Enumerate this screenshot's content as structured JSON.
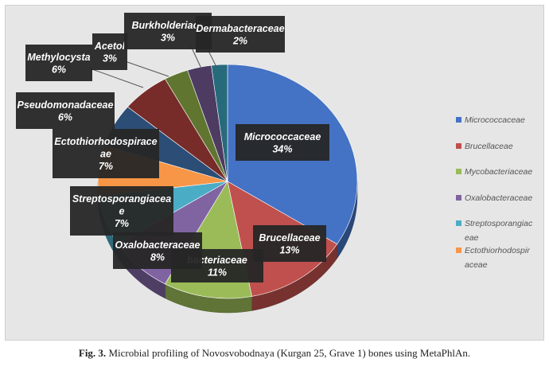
{
  "caption": {
    "label": "Fig. 3.",
    "text": "Microbial profiling of Novosvobodnaya (Kurgan 25, Grave 1) bones using MetaPhlAn."
  },
  "chart_data": {
    "type": "pie",
    "title": "",
    "legend_position": "right",
    "slices": [
      {
        "name": "Micrococcaceae",
        "value": 34,
        "label_lines": [
          "Micrococcaceae"
        ],
        "value_label": "34%",
        "color": "#4472c4"
      },
      {
        "name": "Brucellaceae",
        "value": 13,
        "label_lines": [
          "Brucellaceae"
        ],
        "value_label": "13%",
        "color": "#c0504d"
      },
      {
        "name": "Mycobacteriaceae",
        "value": 11,
        "label_lines": [
          "bacteriaceae"
        ],
        "value_label": "11%",
        "color": "#9bbb59"
      },
      {
        "name": "Oxalobacteraceae",
        "value": 8,
        "label_lines": [
          "Oxalobacteraceae"
        ],
        "value_label": "8%",
        "color": "#8064a2"
      },
      {
        "name": "Streptosporangiaceae",
        "value": 7,
        "label_lines": [
          "Streptosporangiacea",
          "e"
        ],
        "value_label": "7%",
        "color": "#4bacc6"
      },
      {
        "name": "Ectothiorhodospiraceae",
        "value": 7,
        "label_lines": [
          "Ectothiorhodospirace",
          "ae"
        ],
        "value_label": "7%",
        "color": "#f79646"
      },
      {
        "name": "Pseudomonadaceae",
        "value": 6,
        "label_lines": [
          "Pseudomonadaceae"
        ],
        "value_label": "6%",
        "color": "#2c4d75"
      },
      {
        "name": "Methylocystaceae",
        "value": 6,
        "label_lines": [
          "Methylocysta"
        ],
        "value_label": "6%",
        "color": "#772c2a"
      },
      {
        "name": "Acetobacteraceae",
        "value": 3,
        "label_lines": [
          "Acetol"
        ],
        "value_label": "3%",
        "color": "#5f7530"
      },
      {
        "name": "Burkholderiaceae",
        "value": 3,
        "label_lines": [
          "Burkholderiace"
        ],
        "value_label": "3%",
        "color": "#4d3b62"
      },
      {
        "name": "Dermabacteraceae",
        "value": 2,
        "label_lines": [
          "Dermabacteraceae"
        ],
        "value_label": "2%",
        "color": "#276a7c"
      }
    ],
    "legend": [
      {
        "lines": [
          "Micrococcaceae"
        ],
        "color": "#4472c4"
      },
      {
        "lines": [
          "Brucellaceae"
        ],
        "color": "#c0504d"
      },
      {
        "lines": [
          "Mycobacteriaceae"
        ],
        "color": "#9bbb59"
      },
      {
        "lines": [
          "Oxalobacteraceae"
        ],
        "color": "#8064a2"
      },
      {
        "lines": [
          "Streptosporangiac",
          "eae"
        ],
        "color": "#4bacc6"
      },
      {
        "lines": [
          "Ectothiorhodospir",
          "aceae"
        ],
        "color": "#f79646"
      }
    ]
  }
}
